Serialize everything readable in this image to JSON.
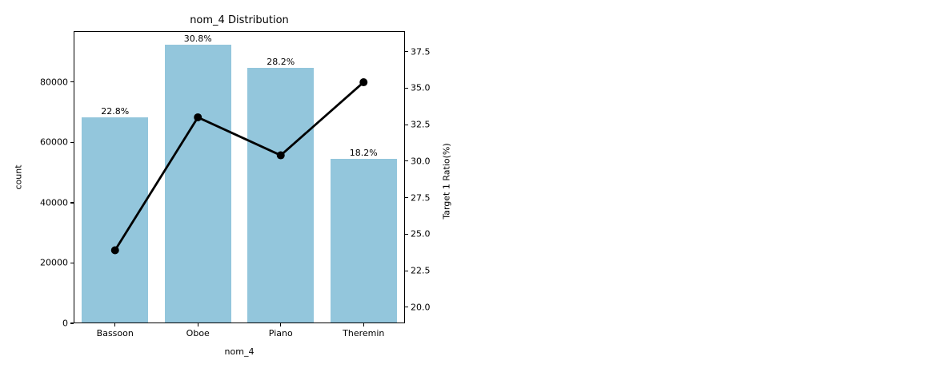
{
  "chart_data": {
    "type": "bar",
    "combo": "bar+line",
    "title": "nom_4 Distribution",
    "xlabel": "nom_4",
    "ylabel_left": "count",
    "ylabel_right": "Target 1 Ratio(%)",
    "categories": [
      "Bassoon",
      "Oboe",
      "Piano",
      "Theremin"
    ],
    "series": [
      {
        "name": "count",
        "type": "bar",
        "axis": "left",
        "color": "#93c6dc",
        "values": [
          68400,
          92400,
          84600,
          54600
        ]
      },
      {
        "name": "Target 1 Ratio(%)",
        "type": "line",
        "axis": "right",
        "color": "#000000",
        "marker": "circle",
        "values": [
          23.9,
          33.0,
          30.4,
          35.4
        ]
      }
    ],
    "bar_value_labels": [
      "22.8%",
      "30.8%",
      "28.2%",
      "18.2%"
    ],
    "yticks_left": [
      0,
      20000,
      40000,
      60000,
      80000
    ],
    "yticks_right": [
      20.0,
      22.5,
      25.0,
      27.5,
      30.0,
      32.5,
      35.0,
      37.5
    ],
    "ylim_left": [
      0,
      96900
    ],
    "ylim_right": [
      18.9,
      38.9
    ],
    "grid": false,
    "legend_position": "none",
    "background_color": "#ffffff",
    "text_color": "#000000",
    "axis_color": "#000000"
  }
}
